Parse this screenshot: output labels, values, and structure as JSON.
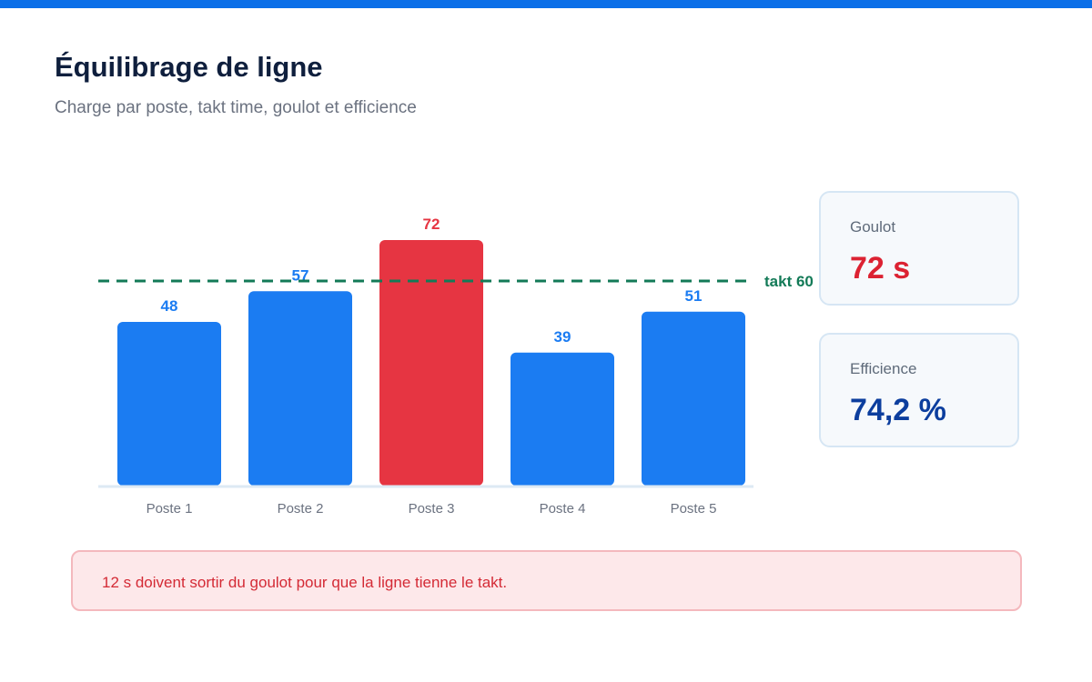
{
  "header": {
    "title": "Équilibrage de ligne",
    "subtitle": "Charge par poste, takt time, goulot et efficience"
  },
  "chart_data": {
    "type": "bar",
    "categories": [
      "Poste 1",
      "Poste 2",
      "Poste 3",
      "Poste 4",
      "Poste 5"
    ],
    "values": [
      48,
      57,
      72,
      39,
      51
    ],
    "highlight_index": 2,
    "takt": 60,
    "takt_label": "takt 60",
    "ylim": [
      0,
      100
    ],
    "colors": {
      "bar": "#1b7cf2",
      "highlight": "#e63542",
      "takt": "#137a57",
      "baseline": "#dde9f4",
      "tick_label": "#6b7280"
    }
  },
  "kpis": {
    "bottleneck": {
      "label": "Goulot",
      "value": "72 s",
      "color": "#dc2232"
    },
    "efficiency": {
      "label": "Efficience",
      "value": "74,2 %",
      "color": "#0c3e9e"
    }
  },
  "alert": {
    "message": "12 s doivent sortir du goulot pour que la ligne tienne le takt."
  }
}
